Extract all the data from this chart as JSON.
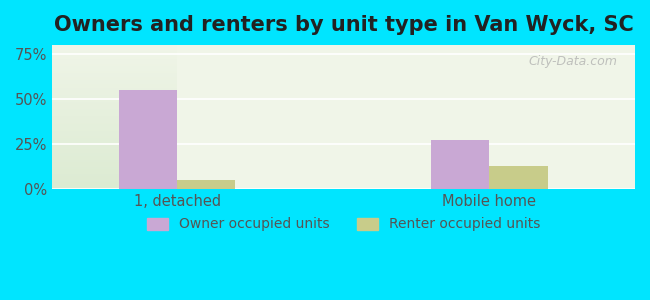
{
  "title": "Owners and renters by unit type in Van Wyck, SC",
  "categories": [
    "1, detached",
    "Mobile home"
  ],
  "owner_values": [
    55.0,
    27.0
  ],
  "renter_values": [
    5.0,
    13.0
  ],
  "owner_color": "#c9a8d4",
  "renter_color": "#c8cc8a",
  "yticks": [
    0,
    25,
    50,
    75
  ],
  "ytick_labels": [
    "0%",
    "25%",
    "50%",
    "75%"
  ],
  "ylim": [
    0,
    80
  ],
  "bg_outer": "#00e5ff",
  "bg_plot_top": "#f0f5e8",
  "bg_plot_bottom": "#e8f0dc",
  "watermark": "City-Data.com",
  "bar_width": 0.28,
  "group_positions": [
    1.0,
    2.5
  ],
  "legend_owner": "Owner occupied units",
  "legend_renter": "Renter occupied units",
  "title_fontsize": 15,
  "tick_fontsize": 10.5,
  "legend_fontsize": 10
}
